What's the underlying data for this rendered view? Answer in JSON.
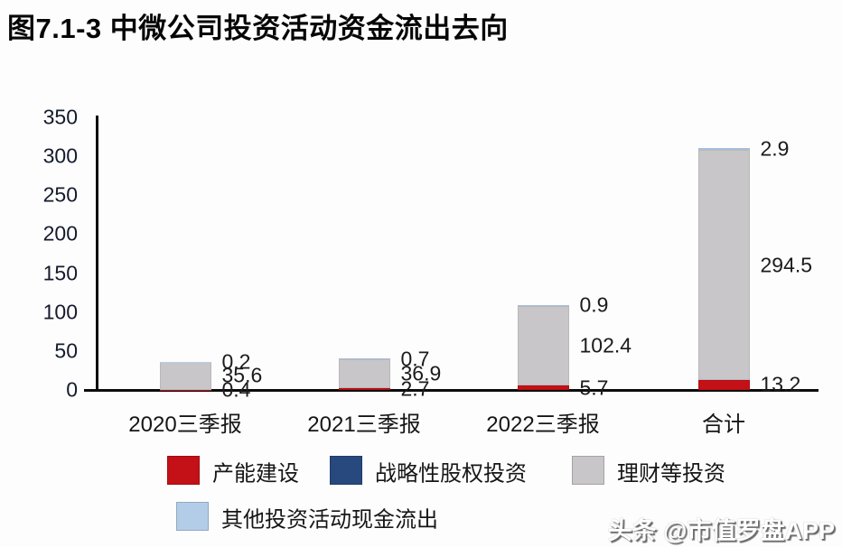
{
  "page": {
    "background": "#fdfdfe"
  },
  "header": {
    "title": "图7.1-3 中微公司投资活动资金流出去向"
  },
  "watermark": {
    "text": "头条 @市值罗盘APP"
  },
  "chart_data": {
    "type": "bar",
    "stacked": true,
    "title": "图7.1-3 中微公司投资活动资金流出去向",
    "xlabel": "",
    "ylabel": "",
    "ylim": [
      0,
      350
    ],
    "yticks": [
      0,
      50,
      100,
      150,
      200,
      250,
      300,
      350
    ],
    "grid": false,
    "data_labels": true,
    "legend_position": "bottom",
    "categories": [
      "2020三季报",
      "2021三季报",
      "2022三季报",
      "合计"
    ],
    "series": [
      {
        "name": "产能建设",
        "color": "#c41017",
        "values": [
          0.4,
          2.7,
          5.7,
          13.2
        ]
      },
      {
        "name": "战略性股权投资",
        "color": "#28497e",
        "values": [
          null,
          null,
          null,
          null
        ]
      },
      {
        "name": "理财等投资",
        "color": "#c8c6c8",
        "values": [
          35.6,
          36.9,
          102.4,
          294.5
        ]
      },
      {
        "name": "其他投资活动现金流出",
        "color": "#b3cde9",
        "values": [
          0.2,
          0.7,
          0.9,
          2.9
        ]
      }
    ]
  }
}
